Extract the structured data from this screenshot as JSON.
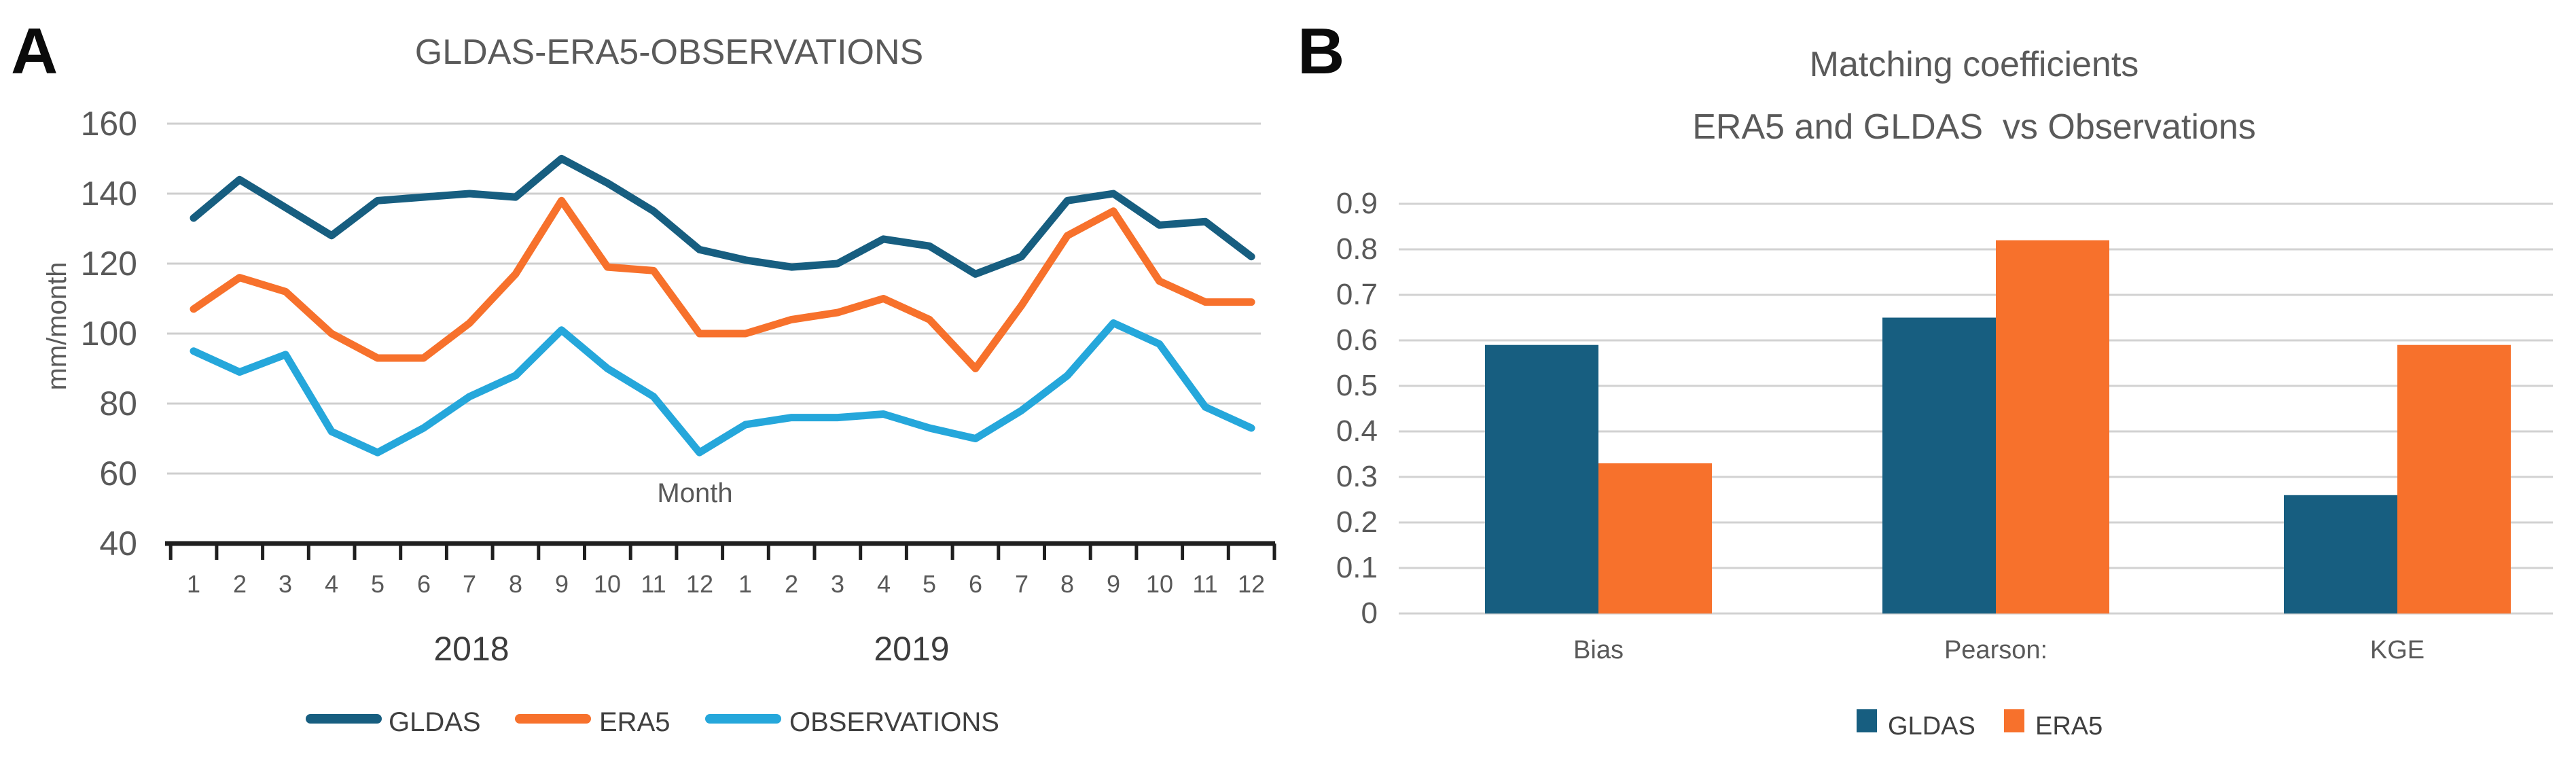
{
  "panel_a": {
    "corner_label": "A",
    "title": "GLDAS-ERA5-OBSERVATIONS",
    "y_axis": {
      "label": "mm/month",
      "tick_labels": [
        "160",
        "140",
        "120",
        "100",
        "80",
        "60",
        "40"
      ]
    },
    "x_axis": {
      "label": "Month",
      "month_labels": [
        "1",
        "2",
        "3",
        "4",
        "5",
        "6",
        "7",
        "8",
        "9",
        "10",
        "11",
        "12",
        "1",
        "2",
        "3",
        "4",
        "5",
        "6",
        "7",
        "8",
        "9",
        "10",
        "11",
        "12"
      ],
      "year_labels": [
        "2018",
        "2019"
      ]
    },
    "legend": [
      {
        "name": "GLDAS",
        "color": "#175E80"
      },
      {
        "name": "ERA5",
        "color": "#F7712C"
      },
      {
        "name": "OBSERVATIONS",
        "color": "#25A7DB"
      }
    ]
  },
  "panel_b": {
    "corner_label": "B",
    "title_line1": "Matching coefficients",
    "title_line2": "ERA5 and GLDAS  vs Observations",
    "y_axis": {
      "tick_labels": [
        "0.9",
        "0.8",
        "0.7",
        "0.6",
        "0.5",
        "0.4",
        "0.3",
        "0.2",
        "0.1",
        "0"
      ]
    },
    "categories": [
      "Bias",
      "Pearson:",
      "KGE"
    ],
    "legend": [
      {
        "name": "GLDAS",
        "color": "#175E80"
      },
      {
        "name": "ERA5",
        "color": "#F7712C"
      }
    ]
  },
  "chart_data": [
    {
      "panel": "A",
      "type": "line",
      "title": "GLDAS-ERA5-OBSERVATIONS",
      "xlabel": "Month",
      "ylabel": "mm/month",
      "ylim": [
        40,
        160
      ],
      "ytick_step": 20,
      "grid": true,
      "legend_position": "bottom",
      "x_months": [
        1,
        2,
        3,
        4,
        5,
        6,
        7,
        8,
        9,
        10,
        11,
        12,
        1,
        2,
        3,
        4,
        5,
        6,
        7,
        8,
        9,
        10,
        11,
        12
      ],
      "x_years": [
        "2018",
        "2019"
      ],
      "series": [
        {
          "name": "GLDAS",
          "color": "#175E80",
          "values": [
            133,
            144,
            136,
            128,
            138,
            139,
            140,
            139,
            150,
            143,
            135,
            124,
            121,
            119,
            120,
            127,
            125,
            117,
            122,
            138,
            140,
            131,
            132,
            122
          ]
        },
        {
          "name": "ERA5",
          "color": "#F7712C",
          "values": [
            107,
            116,
            112,
            100,
            93,
            93,
            103,
            117,
            138,
            119,
            118,
            100,
            100,
            104,
            106,
            110,
            104,
            90,
            108,
            128,
            135,
            115,
            109,
            109
          ]
        },
        {
          "name": "OBSERVATIONS",
          "color": "#25A7DB",
          "values": [
            95,
            89,
            94,
            72,
            66,
            73,
            82,
            88,
            101,
            90,
            82,
            66,
            74,
            76,
            76,
            77,
            73,
            70,
            78,
            88,
            103,
            97,
            79,
            73
          ]
        }
      ]
    },
    {
      "panel": "B",
      "type": "bar",
      "title": "Matching coefficients\nERA5 and GLDAS  vs Observations",
      "categories": [
        "Bias",
        "Pearson:",
        "KGE"
      ],
      "ylim": [
        0,
        0.9
      ],
      "ytick_step": 0.1,
      "grid": true,
      "legend_position": "bottom",
      "series": [
        {
          "name": "GLDAS",
          "color": "#175E80",
          "values": [
            0.59,
            0.65,
            0.26
          ]
        },
        {
          "name": "ERA5",
          "color": "#F7712C",
          "values": [
            0.33,
            0.82,
            0.59
          ]
        }
      ]
    }
  ]
}
